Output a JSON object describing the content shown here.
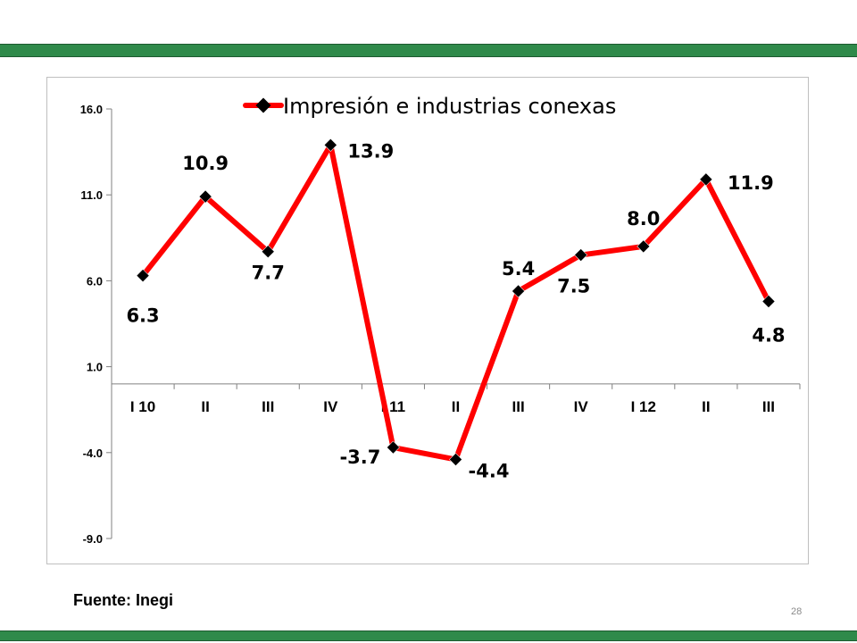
{
  "chart_data": {
    "type": "line",
    "title": "",
    "categories": [
      "I 10",
      "II",
      "III",
      "IV",
      "I 11",
      "II",
      "III",
      "IV",
      "I 12",
      "II",
      "III"
    ],
    "series": [
      {
        "name": "Impresión e industrias conexas",
        "values": [
          6.3,
          10.9,
          7.7,
          13.9,
          -3.7,
          -4.4,
          5.4,
          7.5,
          8.0,
          11.9,
          4.8
        ]
      }
    ],
    "data_labels": [
      "6.3",
      "10.9",
      "7.7",
      "13.9",
      "-3.7",
      "-4.4",
      "5.4",
      "7.5",
      "8.0",
      "11.9",
      "4.8"
    ],
    "y_ticks": [
      "16.0",
      "11.0",
      "6.0",
      "1.0",
      "-4.0",
      "-9.0"
    ],
    "y_tick_values": [
      16,
      11,
      6,
      1,
      -4,
      -9
    ],
    "ylim": [
      -9,
      16
    ],
    "x_axis_crosses_at": 0,
    "xlabel": "",
    "ylabel": "",
    "legend_position": "top",
    "grid": false,
    "colors": {
      "line": "#ff0000",
      "marker": "#000000"
    }
  },
  "footer": {
    "source": "Fuente: Inegi",
    "page_number": "28"
  }
}
